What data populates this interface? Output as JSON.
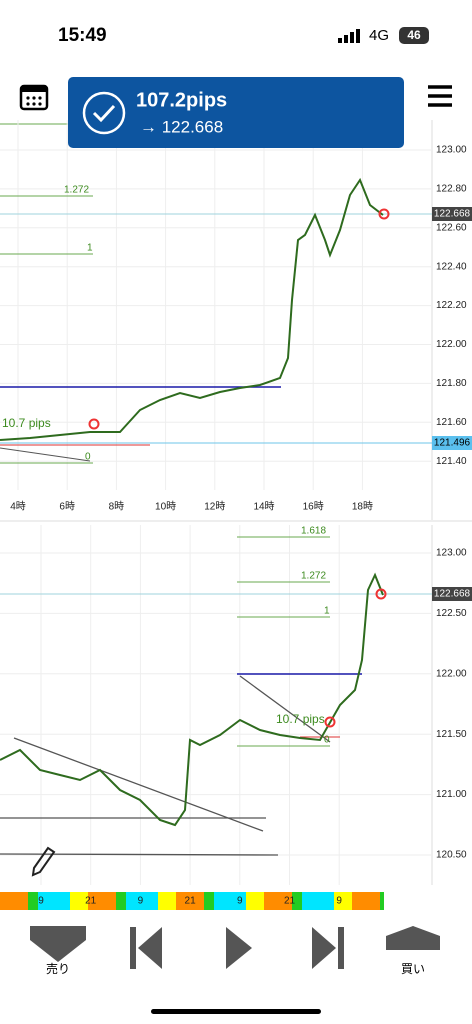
{
  "status": {
    "time": "15:49",
    "network": "4G",
    "battery": "46"
  },
  "notification": {
    "title": "107.2pips",
    "subtitle": "→ 122.668"
  },
  "chart1": {
    "y_labels": [
      "123.00",
      "122.80",
      "122.60",
      "122.40",
      "122.20",
      "122.00",
      "121.80",
      "121.60",
      "121.40"
    ],
    "x_labels": [
      "4時",
      "6時",
      "8時",
      "10時",
      "12時",
      "14時",
      "16時",
      "18時"
    ],
    "price_tags": [
      "122.668",
      "121.496"
    ],
    "fib_labels": [
      "1.272",
      "1",
      "0"
    ],
    "annotation": "10.7 pips"
  },
  "chart2": {
    "y_labels": [
      "123.00",
      "122.50",
      "122.00",
      "121.50",
      "121.00",
      "120.50"
    ],
    "price_tag": "122.668",
    "fib_labels": [
      "1.618",
      "1.272",
      "1",
      "0"
    ],
    "annotation": "10.7 pips",
    "time_bar": [
      "9",
      "21",
      "9",
      "21",
      "9",
      "21",
      "9"
    ]
  },
  "nav": {
    "sell": "売り",
    "buy": "買い"
  }
}
